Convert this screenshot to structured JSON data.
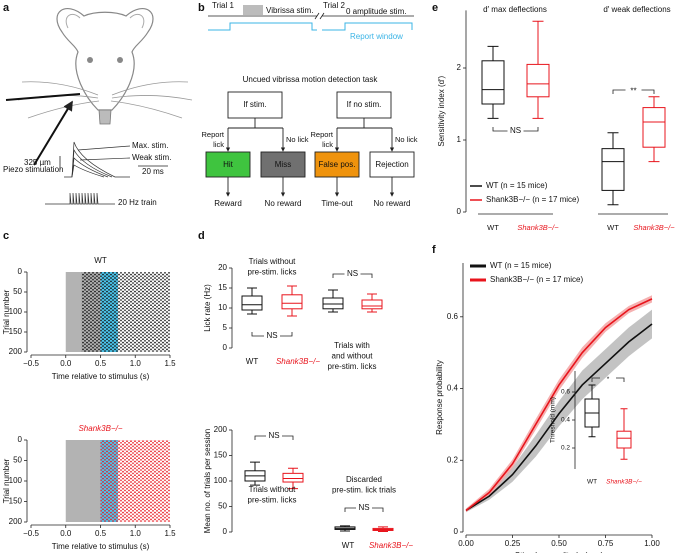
{
  "panel_labels": [
    "a",
    "b",
    "c",
    "d",
    "e",
    "f"
  ],
  "panel_a": {
    "piezo": "Piezo stimulation",
    "max": "Max. stim.",
    "weak": "Weak stim.",
    "scale_y": "325 µm",
    "scale_x": "20 ms",
    "train": "20 Hz train"
  },
  "panel_b": {
    "trial1": "Trial 1",
    "stim1": "Vibrissa stim.",
    "trial2": "Trial 2",
    "stim2": "0 amplitude stim.",
    "window": "Report window",
    "task": "Uncued vibrissa motion detection task",
    "branches": [
      {
        "condition": "If stim.",
        "lick": [
          "Report",
          "lick"
        ],
        "nolick": "No lick",
        "outcomes": [
          {
            "label": "Hit",
            "color": "#3fc43f",
            "result": "Reward"
          },
          {
            "label": "Miss",
            "color": "#707070",
            "result": "No reward"
          }
        ]
      },
      {
        "condition": "If no stim.",
        "lick": [
          "Report",
          "lick"
        ],
        "nolick": "No lick",
        "outcomes": [
          {
            "label": "False pos.",
            "color": "#ef930d",
            "result": "Time-out"
          },
          {
            "label": "Rejection",
            "color": "#ffffff",
            "result": "No reward"
          }
        ]
      }
    ]
  },
  "chart_data": [
    {
      "type": "raster",
      "title": "WT",
      "title_color": "#111111",
      "color": "#111111",
      "xlabel": "Time relative to stimulus (s)",
      "ylabel": "Trial number",
      "xlim": [
        -0.5,
        1.5
      ],
      "xticks": [
        {
          "value": -0.5,
          "label": "−0.5"
        },
        {
          "value": 0,
          "label": "0.0"
        },
        0.5,
        {
          "value": 1,
          "label": "1.0"
        },
        1.5
      ],
      "ylim": [
        0,
        200
      ],
      "yticks": [
        0,
        50,
        100,
        150,
        200
      ],
      "y_reversed": true,
      "shading": [
        {
          "from": 0,
          "to": 0.75,
          "color": "#b3b3b3"
        },
        {
          "from": 0.5,
          "to": 0.75,
          "color": "#4cc8ef"
        }
      ],
      "events_from": 0.23
    },
    {
      "type": "raster",
      "title": "Shank3B−/−",
      "title_color": "#e8141c",
      "color": "#e8141c",
      "xlabel": "Time relative to stimulus (s)",
      "ylabel": "Trial number",
      "xlim": [
        -0.5,
        1.5
      ],
      "xticks": [
        {
          "value": -0.5,
          "label": "−0.5"
        },
        {
          "value": 0,
          "label": "0.0"
        },
        0.5,
        {
          "value": 1,
          "label": "1.0"
        },
        1.5
      ],
      "ylim": [
        0,
        200
      ],
      "yticks": [
        0,
        50,
        100,
        150,
        200
      ],
      "y_reversed": true,
      "shading": [
        {
          "from": 0,
          "to": 0.75,
          "color": "#b3b3b3"
        },
        {
          "from": 0.5,
          "to": 0.75,
          "color": "#4cc8ef"
        }
      ],
      "events_from": 0.5
    },
    {
      "type": "box",
      "ylabel": "Lick rate (Hz)",
      "ylim": [
        0,
        20
      ],
      "yticks": [
        0,
        5,
        10,
        15,
        20
      ],
      "groups": [
        {
          "title": [
            "Trials without",
            "pre-stim. licks"
          ],
          "annotation": "NS",
          "xlabels": [
            "WT",
            "Shank3B−/−"
          ]
        },
        {
          "title": [
            "Trials with",
            "and without",
            "pre-stim. licks"
          ],
          "annotation": "NS"
        }
      ],
      "series": [
        {
          "color": "#111111",
          "values": [
            {
              "whislo": 8.5,
              "q1": 9.5,
              "med": 10.8,
              "q3": 13,
              "whishi": 15
            },
            {
              "whislo": 9,
              "q1": 9.8,
              "med": 11,
              "q3": 12.5,
              "whishi": 14.5
            }
          ]
        },
        {
          "color": "#e8141c",
          "values": [
            {
              "whislo": 8,
              "q1": 9.8,
              "med": 11.2,
              "q3": 13.3,
              "whishi": 15.5
            },
            {
              "whislo": 9,
              "q1": 9.8,
              "med": 10.5,
              "q3": 12,
              "whishi": 13.5
            }
          ]
        }
      ]
    },
    {
      "type": "box",
      "ylabel": "Mean no. of trials per session",
      "ylim": [
        0,
        200
      ],
      "yticks": [
        0,
        50,
        100,
        150,
        200
      ],
      "groups": [
        {
          "title": [
            "Trials without",
            "pre-stim. licks"
          ],
          "annotation": "NS"
        },
        {
          "title": [
            "Discarded",
            "pre-stim. lick trials"
          ],
          "annotation": "NS",
          "xlabels": [
            "WT",
            "Shank3B−/−"
          ]
        }
      ],
      "series": [
        {
          "color": "#111111",
          "values": [
            {
              "whislo": 92,
              "q1": 100,
              "med": 110,
              "q3": 120,
              "whishi": 137
            },
            {
              "whislo": 2,
              "q1": 5,
              "med": 7,
              "q3": 10,
              "whishi": 12
            }
          ]
        },
        {
          "color": "#e8141c",
          "values": [
            {
              "whislo": 85,
              "q1": 98,
              "med": 105,
              "q3": 115,
              "whishi": 125
            },
            {
              "whislo": 1,
              "q1": 3,
              "med": 5,
              "q3": 7,
              "whishi": 10
            }
          ]
        }
      ]
    },
    {
      "type": "box",
      "ylabel": "Sensitivity index (d′)",
      "ylim": [
        0,
        2.8
      ],
      "yticks": [
        0,
        1,
        2
      ],
      "legend": "lower left",
      "groups": [
        {
          "title": [
            "d′ max deflections"
          ],
          "annotation": "NS",
          "xlabels": [
            "WT",
            "Shank3B−/−"
          ]
        },
        {
          "title": [
            "d′ weak deflections"
          ],
          "annotation": "**",
          "xlabels": [
            "WT",
            "Shank3B−/−"
          ]
        }
      ],
      "series": [
        {
          "name": "WT (n = 15 mice)",
          "color": "#111111",
          "values": [
            {
              "whislo": 1.3,
              "q1": 1.5,
              "med": 1.7,
              "q3": 2.1,
              "whishi": 2.3
            },
            {
              "whislo": 0.1,
              "q1": 0.3,
              "med": 0.7,
              "q3": 0.88,
              "whishi": 1.1
            }
          ]
        },
        {
          "name": "Shank3B−/− (n = 17 mice)",
          "color": "#e8141c",
          "values": [
            {
              "whislo": 1.3,
              "q1": 1.6,
              "med": 1.78,
              "q3": 2.05,
              "whishi": 2.65
            },
            {
              "whislo": 0.7,
              "q1": 0.9,
              "med": 1.25,
              "q3": 1.45,
              "whishi": 1.6
            }
          ]
        }
      ]
    },
    {
      "type": "line",
      "xlabel": "Stimulus amplitude (mm)",
      "ylabel": "Response probability",
      "legend": "upper left",
      "xlim": [
        0,
        1
      ],
      "xticks": [
        {
          "value": 0,
          "label": "0.00"
        },
        0.25,
        {
          "value": 0.5,
          "label": "0.50"
        },
        0.75,
        {
          "value": 1,
          "label": "1.00"
        }
      ],
      "ylim": [
        0,
        0.75
      ],
      "yticks": [
        0,
        0.2,
        0.4,
        0.6
      ],
      "x": [
        0,
        0.125,
        0.25,
        0.375,
        0.5,
        0.625,
        0.75,
        0.875,
        1
      ],
      "series": [
        {
          "name": "WT (n = 15 mice)",
          "color": "#111111",
          "band_color": "#b8b8b8",
          "values": [
            0.06,
            0.1,
            0.16,
            0.24,
            0.33,
            0.41,
            0.47,
            0.53,
            0.58
          ],
          "lower": [
            0.055,
            0.09,
            0.14,
            0.21,
            0.295,
            0.37,
            0.43,
            0.49,
            0.54
          ],
          "upper": [
            0.065,
            0.11,
            0.18,
            0.27,
            0.365,
            0.45,
            0.51,
            0.57,
            0.62
          ]
        },
        {
          "name": "Shank3B−/− (n = 17 mice)",
          "color": "#e8141c",
          "band_color": "#f3a3a3",
          "values": [
            0.06,
            0.11,
            0.19,
            0.3,
            0.41,
            0.5,
            0.57,
            0.62,
            0.65
          ],
          "lower": [
            0.055,
            0.1,
            0.178,
            0.285,
            0.395,
            0.485,
            0.558,
            0.61,
            0.64
          ],
          "upper": [
            0.065,
            0.12,
            0.202,
            0.315,
            0.425,
            0.515,
            0.582,
            0.63,
            0.66
          ]
        }
      ]
    },
    {
      "type": "box",
      "ylabel": "Threshold (mm)",
      "ylim": [
        0.05,
        0.75
      ],
      "yticks": [
        0.2,
        0.4,
        0.6
      ],
      "groups": [
        {
          "annotation": "*",
          "xlabels": [
            "WT",
            "Shank3B−/−"
          ]
        }
      ],
      "series": [
        {
          "color": "#111111",
          "values": [
            {
              "whislo": 0.28,
              "q1": 0.35,
              "med": 0.45,
              "q3": 0.55,
              "whishi": 0.65
            }
          ]
        },
        {
          "color": "#e8141c",
          "values": [
            {
              "whislo": 0.12,
              "q1": 0.2,
              "med": 0.27,
              "q3": 0.32,
              "whishi": 0.48
            }
          ]
        }
      ]
    }
  ]
}
